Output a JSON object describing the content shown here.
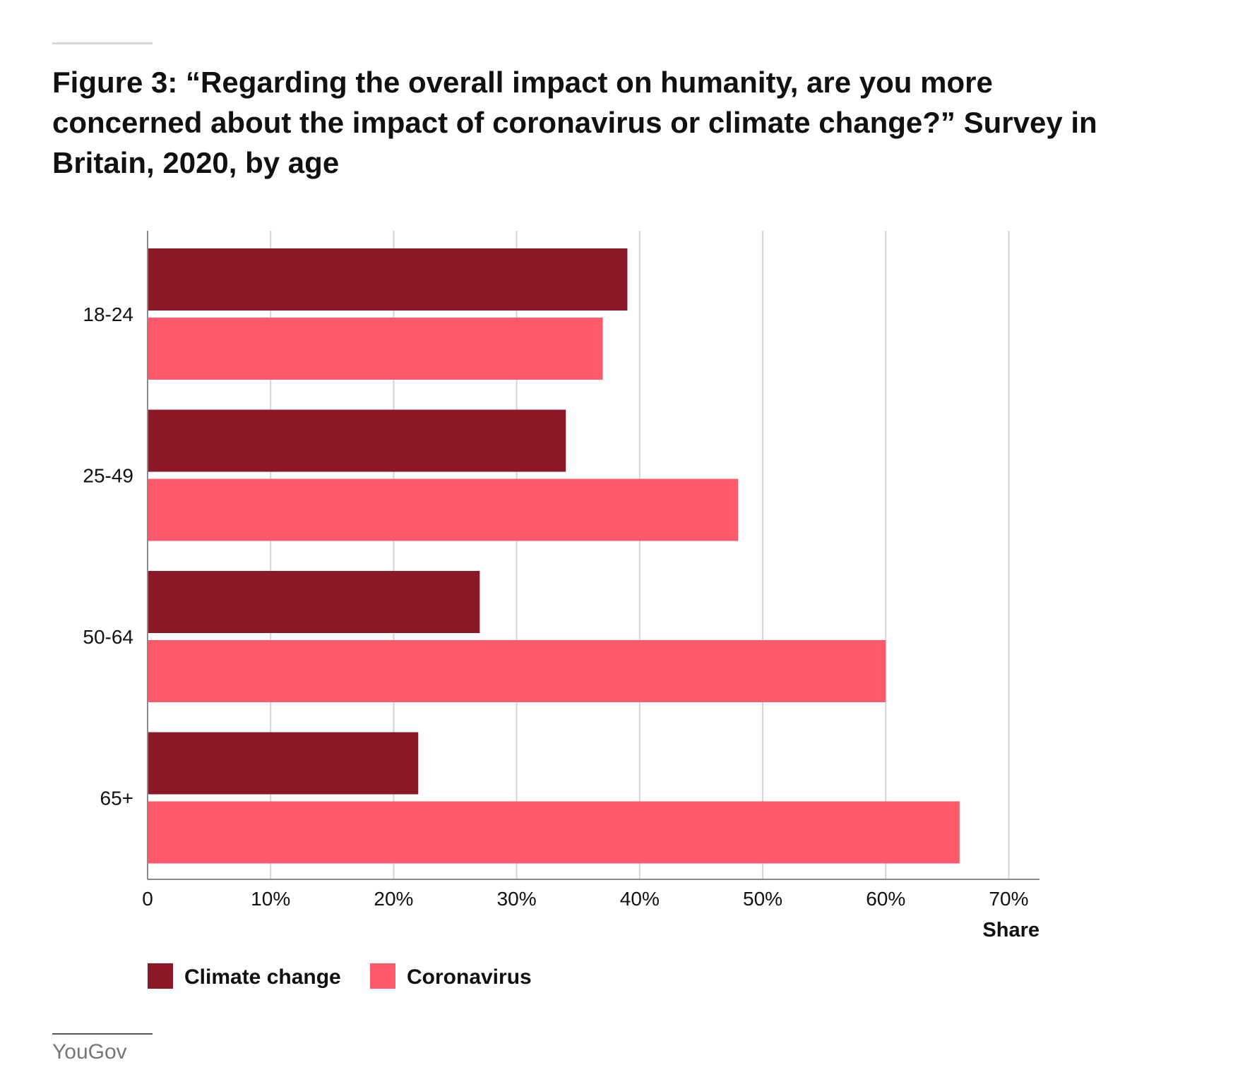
{
  "title": "Figure 3: “Regarding the overall impact on humanity, are you more concerned about the impact of coronavirus or climate change?” Survey in Britain, 2020, by age",
  "source": "YouGov",
  "colors": {
    "climate_change": "#8b1727",
    "coronavirus": "#ff596b",
    "grid": "#d4d4d4",
    "axis": "#8a8a8a"
  },
  "chart_data": {
    "type": "bar",
    "orientation": "horizontal",
    "title": "Figure 3: “Regarding the overall impact on humanity, are you more concerned about the impact of coronavirus or climate change?” Survey in Britain, 2020, by age",
    "xlabel": "Share",
    "ylabel": "",
    "categories": [
      "18-24",
      "25-49",
      "50-64",
      "65+"
    ],
    "series": [
      {
        "name": "Climate change",
        "color": "#8b1727",
        "values": [
          39,
          34,
          27,
          22
        ]
      },
      {
        "name": "Coronavirus",
        "color": "#ff596b",
        "values": [
          37,
          48,
          60,
          66
        ]
      }
    ],
    "xlim": [
      0,
      72.5
    ],
    "x_ticks": [
      0,
      10,
      20,
      30,
      40,
      50,
      60,
      70
    ],
    "x_tick_labels": [
      "0",
      "10%",
      "20%",
      "30%",
      "40%",
      "50%",
      "60%",
      "70%"
    ],
    "grid": true,
    "legend_position": "bottom-left"
  }
}
